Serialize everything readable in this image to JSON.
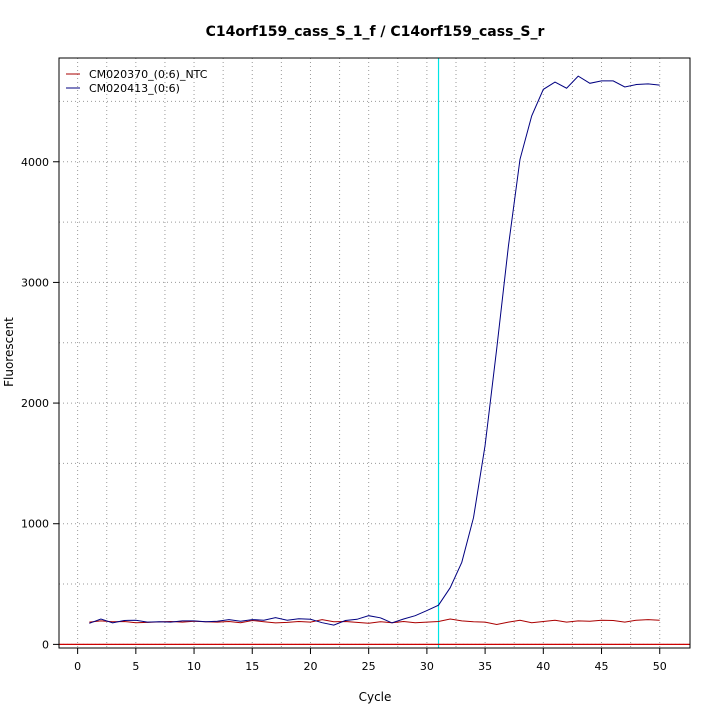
{
  "chart_data": {
    "type": "line",
    "title": "C14orf159_cass_S_1_f / C14orf159_cass_S_r",
    "xlabel": "Cycle",
    "ylabel": "Fluorescent",
    "xlim": [
      -1.6,
      52.6
    ],
    "ylim": [
      -30,
      4860
    ],
    "xticks": [
      0,
      5,
      10,
      15,
      20,
      25,
      30,
      35,
      40,
      45,
      50
    ],
    "yticks": [
      0,
      1000,
      2000,
      3000,
      4000
    ],
    "grid": true,
    "legend_position": "top-left",
    "threshold_cycle": 31,
    "threshold_color": "#00e5e5",
    "baseline_color": "#cc0000",
    "series": [
      {
        "name": "CM020370_(0:6)_NTC",
        "color": "#aa0000",
        "x": [
          1,
          2,
          3,
          4,
          5,
          6,
          7,
          8,
          9,
          10,
          11,
          12,
          13,
          14,
          15,
          16,
          17,
          18,
          19,
          20,
          21,
          22,
          23,
          24,
          25,
          26,
          27,
          28,
          29,
          30,
          31,
          32,
          33,
          34,
          35,
          36,
          37,
          38,
          39,
          40,
          41,
          42,
          43,
          44,
          45,
          46,
          47,
          48,
          49,
          50
        ],
        "y": [
          185,
          195,
          188,
          190,
          180,
          182,
          186,
          190,
          185,
          192,
          188,
          185,
          190,
          180,
          198,
          188,
          178,
          182,
          190,
          185,
          205,
          188,
          190,
          182,
          175,
          188,
          180,
          190,
          180,
          185,
          190,
          210,
          195,
          188,
          185,
          165,
          185,
          200,
          180,
          190,
          200,
          185,
          195,
          192,
          200,
          198,
          185,
          200,
          205,
          200
        ]
      },
      {
        "name": "CM020413_(0:6)",
        "color": "#000080",
        "x": [
          1,
          2,
          3,
          4,
          5,
          6,
          7,
          8,
          9,
          10,
          11,
          12,
          13,
          14,
          15,
          16,
          17,
          18,
          19,
          20,
          21,
          22,
          23,
          24,
          25,
          26,
          27,
          28,
          29,
          30,
          31,
          32,
          33,
          34,
          35,
          36,
          37,
          38,
          39,
          40,
          41,
          42,
          43,
          44,
          45,
          46,
          47,
          48,
          49,
          50
        ],
        "y": [
          175,
          210,
          178,
          198,
          200,
          185,
          188,
          185,
          195,
          195,
          188,
          192,
          205,
          192,
          205,
          200,
          222,
          200,
          212,
          208,
          180,
          160,
          198,
          208,
          238,
          220,
          178,
          210,
          238,
          280,
          325,
          470,
          680,
          1050,
          1650,
          2450,
          3300,
          4020,
          4380,
          4600,
          4660,
          4610,
          4710,
          4650,
          4670,
          4670,
          4620,
          4640,
          4645,
          4635
        ]
      }
    ]
  }
}
